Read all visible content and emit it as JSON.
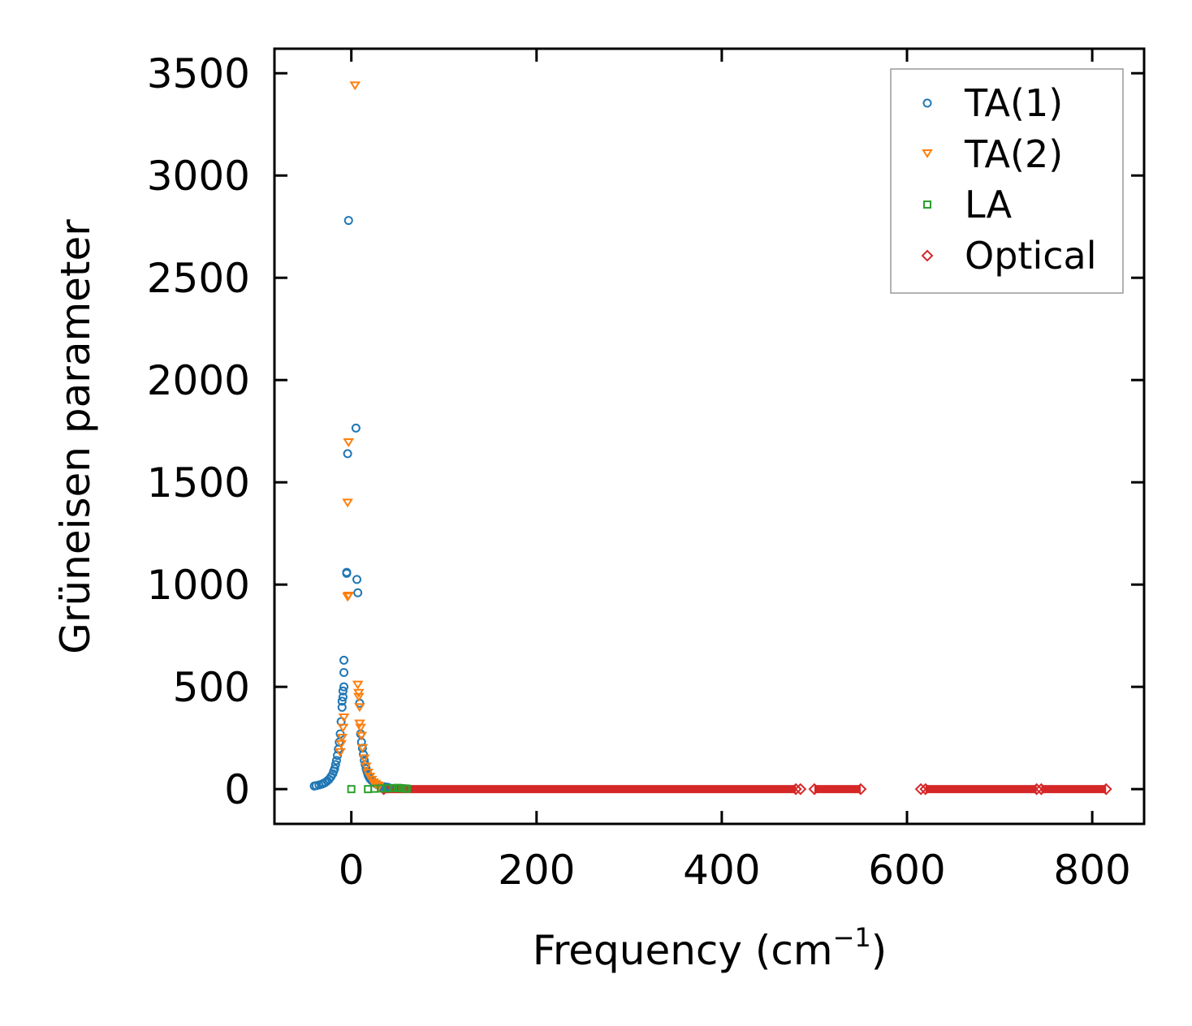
{
  "chart_data": {
    "type": "scatter",
    "title": "",
    "xlabel": "Frequency (cm",
    "xlabel_superscript": "−1",
    "xlabel_suffix": ")",
    "ylabel": "Grüneisen parameter",
    "xlim": [
      -83,
      856
    ],
    "ylim": [
      -170,
      3620
    ],
    "xticks": [
      0,
      200,
      400,
      600,
      800
    ],
    "yticks": [
      0,
      500,
      1000,
      1500,
      2000,
      2500,
      3000,
      3500
    ],
    "xtick_labels": [
      "0",
      "200",
      "400",
      "600",
      "800"
    ],
    "ytick_labels": [
      "0",
      "500",
      "1000",
      "1500",
      "2000",
      "2500",
      "3000",
      "3500"
    ],
    "grid": false,
    "legend_position": "top-right",
    "series": [
      {
        "name": "TA(1)",
        "marker": "circle",
        "color": "#1f77b4",
        "x": [
          -3,
          -4,
          -5,
          5,
          6,
          -5,
          7,
          -8,
          -8,
          -8,
          -9,
          -9,
          -10,
          9,
          10,
          -10,
          -11,
          -12,
          -13,
          -14,
          -15,
          -16,
          -17,
          -18,
          -19,
          -20,
          -22,
          -24,
          -26,
          -28,
          -30,
          -32,
          -35,
          -38,
          -40,
          11,
          12,
          13,
          14,
          15,
          16,
          17,
          18,
          19,
          20,
          22,
          24,
          26,
          28,
          30,
          32,
          35,
          38,
          40
        ],
        "y": [
          2780,
          1640,
          1060,
          1765,
          1025,
          1055,
          960,
          630,
          570,
          500,
          480,
          450,
          430,
          420,
          270,
          400,
          330,
          270,
          230,
          195,
          165,
          140,
          120,
          100,
          88,
          75,
          60,
          48,
          40,
          33,
          28,
          24,
          20,
          17,
          15,
          230,
          200,
          170,
          140,
          120,
          100,
          85,
          70,
          60,
          52,
          42,
          35,
          28,
          22,
          18,
          15,
          12,
          10,
          8
        ]
      },
      {
        "name": "TA(2)",
        "marker": "triangle-down",
        "color": "#ff7f0e",
        "x": [
          4,
          -3,
          -4,
          -3,
          -4,
          7,
          8,
          8,
          9,
          9,
          10,
          -8,
          -9,
          -10,
          -11,
          -12,
          11,
          12,
          14,
          16,
          18,
          20,
          22,
          24,
          26,
          28,
          30
        ],
        "y": [
          3440,
          1695,
          1400,
          945,
          940,
          510,
          470,
          450,
          400,
          320,
          300,
          350,
          300,
          250,
          220,
          180,
          260,
          200,
          150,
          110,
          80,
          60,
          45,
          32,
          25,
          18,
          14
        ]
      },
      {
        "name": "LA",
        "marker": "square",
        "color": "#2ca02c",
        "x": [
          0,
          18,
          25,
          32,
          40,
          45,
          50,
          52,
          55,
          58,
          60
        ],
        "y": [
          0,
          0,
          2,
          3,
          4,
          5,
          6,
          5,
          4,
          3,
          2
        ]
      },
      {
        "name": "Optical",
        "marker": "diamond",
        "color": "#d62728",
        "x": [
          485,
          615
        ],
        "y": [
          0,
          0
        ],
        "bands": [
          [
            35,
            480
          ],
          [
            500,
            550
          ],
          [
            620,
            740
          ],
          [
            745,
            815
          ]
        ]
      }
    ]
  }
}
